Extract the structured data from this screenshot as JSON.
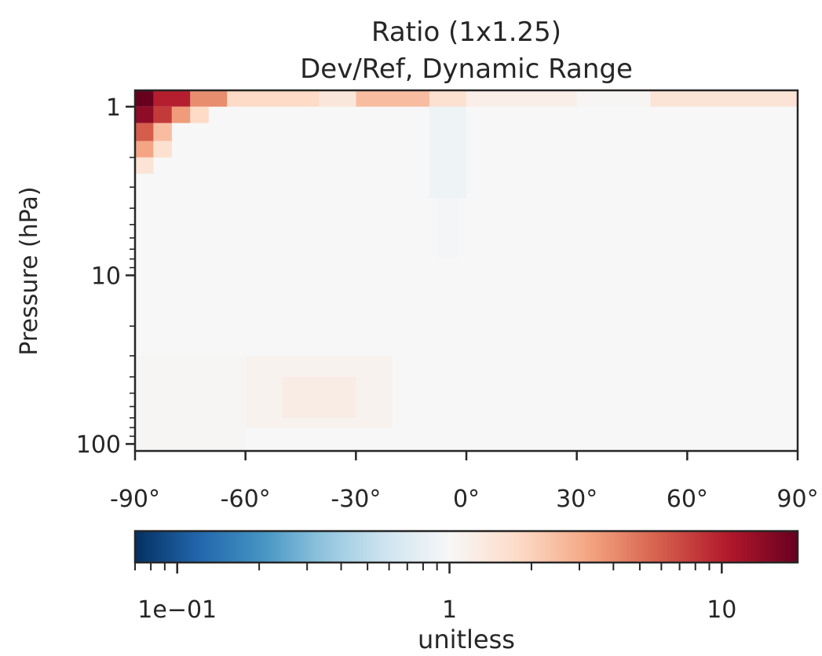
{
  "chart_data": {
    "type": "heatmap",
    "title": "Ratio (1x1.25)",
    "subtitle": "Dev/Ref, Dynamic Range",
    "xlabel": "",
    "ylabel": "Pressure (hPa)",
    "x_ticks": [
      {
        "value": -90,
        "label": "-90°"
      },
      {
        "value": -60,
        "label": "-60°"
      },
      {
        "value": -30,
        "label": "-30°"
      },
      {
        "value": 0,
        "label": "0°"
      },
      {
        "value": 30,
        "label": "30°"
      },
      {
        "value": 60,
        "label": "60°"
      },
      {
        "value": 90,
        "label": "90°"
      }
    ],
    "xlim": [
      -90,
      90
    ],
    "y_scale": "log",
    "y_inverted": true,
    "ylim": [
      0.8,
      110
    ],
    "y_ticks": [
      {
        "value": 1,
        "label": "1"
      },
      {
        "value": 10,
        "label": "10"
      },
      {
        "value": 100,
        "label": "100"
      }
    ],
    "colormap": "RdBu_r",
    "color_scale": "log",
    "color_range": [
      0.07,
      19
    ],
    "colorbar": {
      "label": "unitless",
      "orientation": "horizontal",
      "placement": "bottom",
      "ticks": [
        {
          "value": 0.1,
          "label": "1e−01"
        },
        {
          "value": 1,
          "label": "1"
        },
        {
          "value": 10,
          "label": "10"
        }
      ]
    },
    "features": [
      {
        "desc": "high polar ratio",
        "lat": [
          -90,
          -85
        ],
        "p": [
          0.8,
          1.0
        ],
        "value": 19
      },
      {
        "desc": "top row ratio",
        "lat": [
          -85,
          -75
        ],
        "p": [
          0.8,
          1.0
        ],
        "value": 10
      },
      {
        "desc": "top row ratio",
        "lat": [
          -75,
          -65
        ],
        "p": [
          0.8,
          1.0
        ],
        "value": 4
      },
      {
        "desc": "top row ratio",
        "lat": [
          -65,
          -40
        ],
        "p": [
          0.8,
          1.0
        ],
        "value": 1.8
      },
      {
        "desc": "top row ratio",
        "lat": [
          -40,
          -30
        ],
        "p": [
          0.8,
          1.0
        ],
        "value": 1.4
      },
      {
        "desc": "top row ratio",
        "lat": [
          -30,
          -10
        ],
        "p": [
          0.8,
          1.0
        ],
        "value": 2.5
      },
      {
        "desc": "top row ratio",
        "lat": [
          -10,
          0
        ],
        "p": [
          0.8,
          1.0
        ],
        "value": 1.6
      },
      {
        "desc": "top row ratio",
        "lat": [
          0,
          30
        ],
        "p": [
          0.8,
          1.0
        ],
        "value": 1.2
      },
      {
        "desc": "top row ratio",
        "lat": [
          30,
          50
        ],
        "p": [
          0.8,
          1.0
        ],
        "value": 1.05
      },
      {
        "desc": "top row ratio",
        "lat": [
          50,
          90
        ],
        "p": [
          0.8,
          1.0
        ],
        "value": 1.5
      },
      {
        "desc": "polar column",
        "lat": [
          -90,
          -85
        ],
        "p": [
          1.0,
          1.25
        ],
        "value": 14
      },
      {
        "desc": "polar column",
        "lat": [
          -85,
          -80
        ],
        "p": [
          1.0,
          1.25
        ],
        "value": 8
      },
      {
        "desc": "polar column",
        "lat": [
          -80,
          -75
        ],
        "p": [
          1.0,
          1.25
        ],
        "value": 3.5
      },
      {
        "desc": "polar column",
        "lat": [
          -75,
          -70
        ],
        "p": [
          1.0,
          1.25
        ],
        "value": 1.8
      },
      {
        "desc": "polar column",
        "lat": [
          -90,
          -85
        ],
        "p": [
          1.25,
          1.6
        ],
        "value": 6
      },
      {
        "desc": "polar column",
        "lat": [
          -85,
          -80
        ],
        "p": [
          1.25,
          1.6
        ],
        "value": 2.5
      },
      {
        "desc": "polar column",
        "lat": [
          -90,
          -85
        ],
        "p": [
          1.6,
          2.0
        ],
        "value": 3.2
      },
      {
        "desc": "polar column",
        "lat": [
          -85,
          -80
        ],
        "p": [
          1.6,
          2.0
        ],
        "value": 1.6
      },
      {
        "desc": "polar column",
        "lat": [
          -90,
          -85
        ],
        "p": [
          2.0,
          2.5
        ],
        "value": 1.5
      },
      {
        "desc": "tropical low",
        "lat": [
          -10,
          0
        ],
        "p": [
          1.0,
          3.5
        ],
        "value": 0.88
      },
      {
        "desc": "tropical low",
        "lat": [
          -8,
          -2
        ],
        "p": [
          3.5,
          8
        ],
        "value": 0.95
      },
      {
        "desc": "mid-lat high",
        "lat": [
          -50,
          -30
        ],
        "p": [
          40,
          70
        ],
        "value": 1.25
      },
      {
        "desc": "mid-lat high",
        "lat": [
          -60,
          -20
        ],
        "p": [
          30,
          80
        ],
        "value": 1.1
      },
      {
        "desc": "southern low band",
        "lat": [
          -90,
          -60
        ],
        "p": [
          30,
          110
        ],
        "value": 1.05
      }
    ]
  }
}
